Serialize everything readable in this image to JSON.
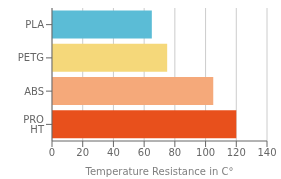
{
  "chart_data": {
    "type": "bar",
    "orientation": "horizontal",
    "categories": [
      "PRO HT",
      "ABS",
      "PETG",
      "PLA"
    ],
    "values": [
      120,
      105,
      75,
      65
    ],
    "colors": [
      "#e8501c",
      "#f5a97a",
      "#f5d87a",
      "#5bbcd6"
    ],
    "xlabel": "Temperature Resistance in C°",
    "xlim": [
      0,
      140
    ],
    "xticks": [
      0,
      20,
      40,
      60,
      80,
      100,
      120,
      140
    ],
    "grid": true
  }
}
